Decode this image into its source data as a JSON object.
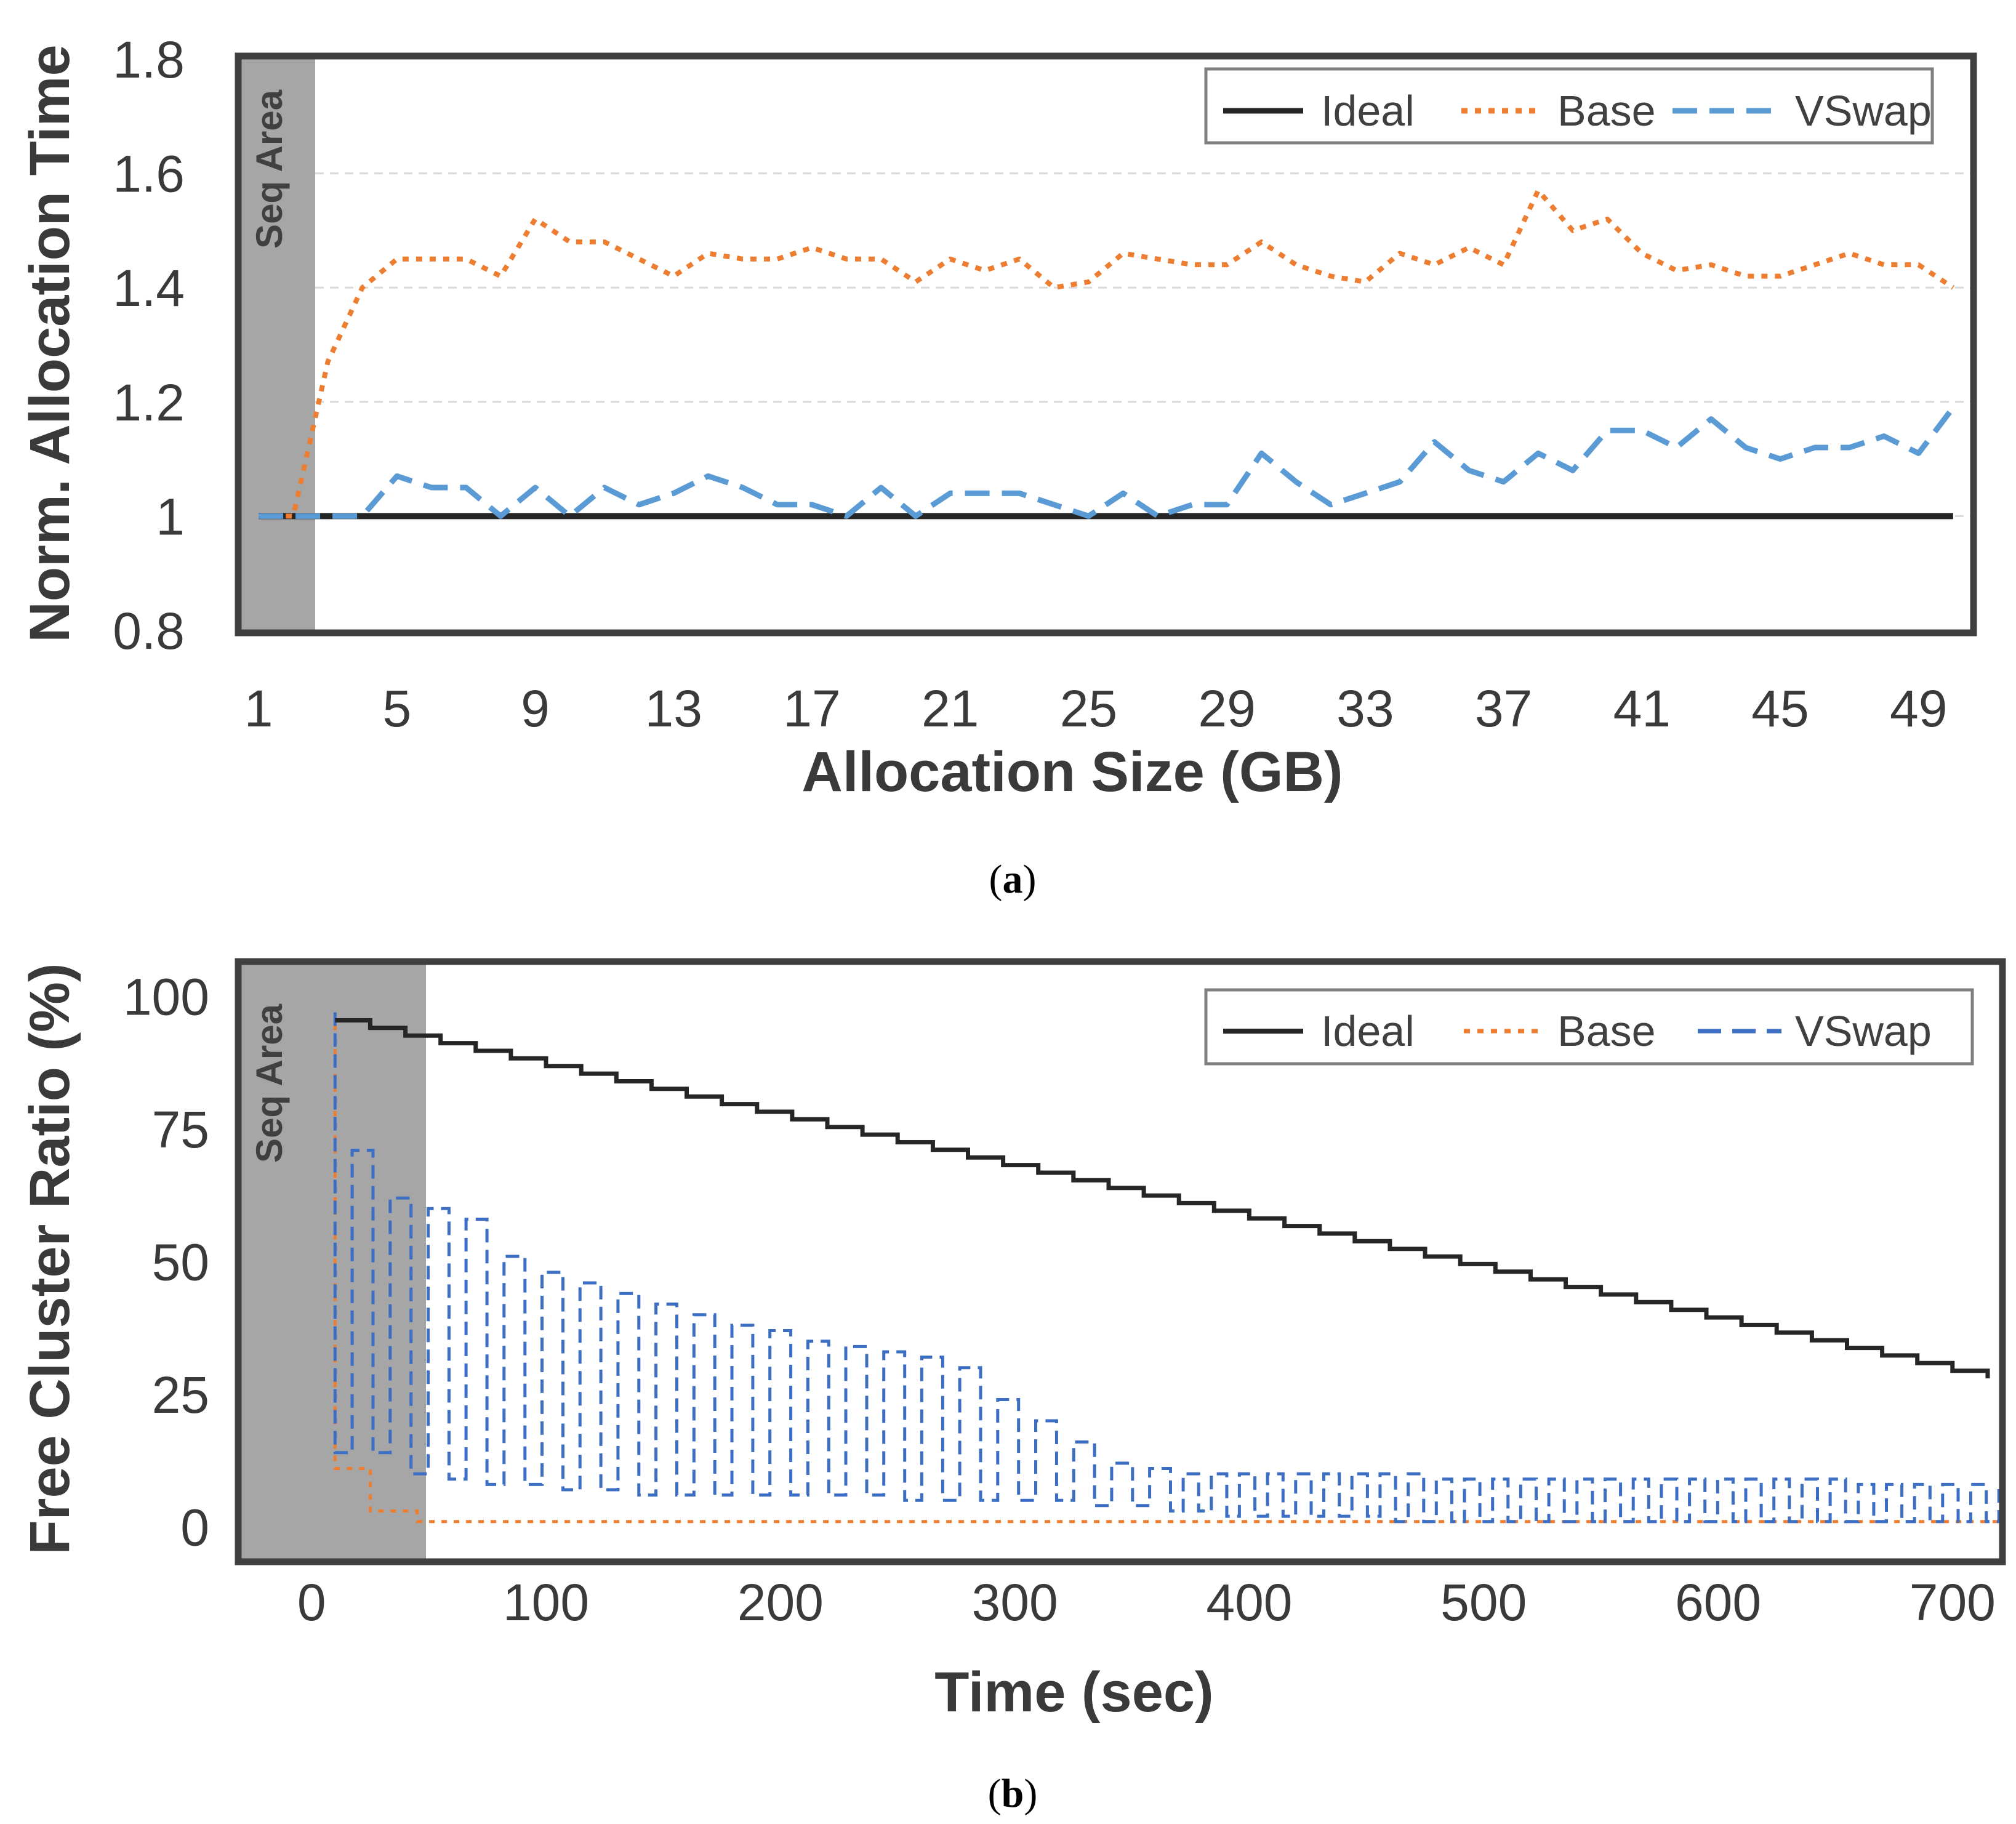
{
  "chart_data": [
    {
      "id": "a",
      "type": "line",
      "caption": {
        "open": "(",
        "letter": "a",
        "close": ")"
      },
      "title": "",
      "xlabel": "Allocation Size (GB)",
      "ylabel": "Norm. Allocation Time",
      "xlim": [
        0.5,
        50.5
      ],
      "ylim": [
        0.8,
        1.8
      ],
      "x_ticks": [
        1,
        5,
        9,
        13,
        17,
        21,
        25,
        29,
        33,
        37,
        41,
        45,
        49
      ],
      "x_tick_labels": [
        "1",
        "5",
        "9",
        "13",
        "17",
        "21",
        "25",
        "29",
        "33",
        "37",
        "41",
        "45",
        "49"
      ],
      "y_ticks": [
        0.8,
        1,
        1.2,
        1.4,
        1.6,
        1.8
      ],
      "y_tick_labels": [
        "0.8",
        "1",
        "1.2",
        "1.4",
        "1.6",
        "1.8"
      ],
      "grid": "horizontal",
      "legend_placement": "top-right",
      "seq_area": {
        "label": "Seq Area",
        "from": 0.5,
        "to": 2.7
      },
      "x": [
        1,
        2,
        3,
        4,
        5,
        6,
        7,
        8,
        9,
        10,
        11,
        12,
        13,
        14,
        15,
        16,
        17,
        18,
        19,
        20,
        21,
        22,
        23,
        24,
        25,
        26,
        27,
        28,
        29,
        30,
        31,
        32,
        33,
        34,
        35,
        36,
        37,
        38,
        39,
        40,
        41,
        42,
        43,
        44,
        45,
        46,
        47,
        48,
        49,
        50
      ],
      "series": [
        {
          "name": "Ideal",
          "style": "solid",
          "color": "#262626",
          "values": [
            1,
            1,
            1,
            1,
            1,
            1,
            1,
            1,
            1,
            1,
            1,
            1,
            1,
            1,
            1,
            1,
            1,
            1,
            1,
            1,
            1,
            1,
            1,
            1,
            1,
            1,
            1,
            1,
            1,
            1,
            1,
            1,
            1,
            1,
            1,
            1,
            1,
            1,
            1,
            1,
            1,
            1,
            1,
            1,
            1,
            1,
            1,
            1,
            1,
            1
          ]
        },
        {
          "name": "Base",
          "style": "dotted",
          "color": "#ed7d31",
          "values": [
            1.0,
            1.0,
            1.27,
            1.4,
            1.45,
            1.45,
            1.45,
            1.42,
            1.52,
            1.48,
            1.48,
            1.45,
            1.42,
            1.46,
            1.45,
            1.45,
            1.47,
            1.45,
            1.45,
            1.41,
            1.45,
            1.43,
            1.45,
            1.4,
            1.41,
            1.46,
            1.45,
            1.44,
            1.44,
            1.48,
            1.44,
            1.42,
            1.41,
            1.46,
            1.44,
            1.47,
            1.44,
            1.57,
            1.5,
            1.52,
            1.46,
            1.43,
            1.44,
            1.42,
            1.42,
            1.44,
            1.46,
            1.44,
            1.44,
            1.4
          ]
        },
        {
          "name": "VSwap",
          "style": "dashed",
          "color": "#5b9bd5",
          "values": [
            1.0,
            1.0,
            1.0,
            1.0,
            1.07,
            1.05,
            1.05,
            1.0,
            1.05,
            1.0,
            1.05,
            1.02,
            1.04,
            1.07,
            1.05,
            1.02,
            1.02,
            1.0,
            1.05,
            1.0,
            1.04,
            1.04,
            1.04,
            1.02,
            1.0,
            1.04,
            1.0,
            1.02,
            1.02,
            1.11,
            1.06,
            1.02,
            1.04,
            1.06,
            1.13,
            1.08,
            1.06,
            1.11,
            1.08,
            1.15,
            1.15,
            1.12,
            1.17,
            1.12,
            1.1,
            1.12,
            1.12,
            1.14,
            1.11,
            1.19
          ]
        }
      ]
    },
    {
      "id": "b",
      "type": "line",
      "caption": {
        "open": "(",
        "letter": "b",
        "close": ")"
      },
      "title": "",
      "xlabel": "Time (sec)",
      "ylabel": "Free Cluster Ratio (%)",
      "xlim": [
        -30,
        720
      ],
      "ylim": [
        -6,
        106
      ],
      "x_ticks": [
        0,
        100,
        200,
        300,
        400,
        500,
        600,
        700
      ],
      "x_tick_labels": [
        "0",
        "100",
        "200",
        "300",
        "400",
        "500",
        "600",
        "700"
      ],
      "y_ticks": [
        0,
        25,
        50,
        75,
        100
      ],
      "y_tick_labels": [
        "0",
        "25",
        "50",
        "75",
        "100"
      ],
      "grid": "none",
      "legend_placement": "top-right",
      "seq_area": {
        "label": "Seq Area",
        "from": -30,
        "to": 45
      },
      "series": [
        {
          "name": "Ideal",
          "style": "solid-step",
          "color": "#262626",
          "step_sec": 15,
          "x_start": 10,
          "x_end": 720,
          "y_start": 95.5,
          "y_end": 28
        },
        {
          "name": "Base",
          "style": "dotted-step",
          "color": "#ed7d31",
          "points": [
            [
              10,
              97
            ],
            [
              10,
              11
            ],
            [
              25,
              11
            ],
            [
              25,
              3
            ],
            [
              45,
              3
            ],
            [
              45,
              1
            ],
            [
              720,
              1
            ]
          ]
        },
        {
          "name": "VSwap",
          "style": "dashed-square-wave",
          "color": "#3c6fc4",
          "peaks": [
            97,
            71,
            62,
            60,
            58,
            51,
            48,
            46,
            44,
            42,
            40,
            38,
            37,
            35,
            34,
            33,
            32,
            30,
            24,
            20,
            16,
            12,
            11,
            10,
            10,
            10,
            10,
            10,
            10,
            10,
            10,
            10,
            9,
            9,
            9,
            9,
            9,
            9,
            9,
            9,
            9,
            9,
            9,
            9,
            9,
            9,
            9,
            8,
            8,
            8,
            8,
            8
          ],
          "troughs": [
            14,
            14,
            10,
            9,
            8,
            8,
            7,
            7,
            6,
            6,
            6,
            6,
            6,
            6,
            6,
            5,
            5,
            5,
            5,
            5,
            4,
            4,
            3,
            3,
            2,
            2,
            2,
            2,
            2,
            2,
            1,
            1,
            1,
            1,
            1,
            1,
            1,
            1,
            1,
            1,
            1,
            1,
            1,
            1,
            1,
            1,
            1,
            1,
            1,
            1,
            1,
            1
          ],
          "period_a_sec": 16.2,
          "period_b_sec": 12,
          "switch_index": 22,
          "start_sec": 10
        }
      ]
    }
  ],
  "legend": {
    "ideal": "Ideal",
    "base": "Base",
    "vswap": "VSwap"
  }
}
